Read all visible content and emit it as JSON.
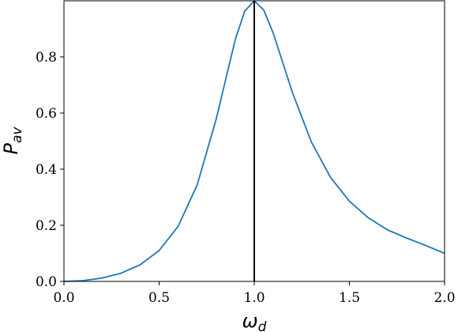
{
  "chart_data": {
    "type": "line",
    "xlabel": {
      "main": "ω",
      "sub": "d"
    },
    "ylabel": {
      "main": "P",
      "sub": "av"
    },
    "series": [
      {
        "color": "#1f77b4",
        "x": [
          0,
          0.1,
          0.2,
          0.3,
          0.4,
          0.5,
          0.6,
          0.7,
          0.8,
          0.9,
          0.95,
          1.0,
          1.05,
          1.1,
          1.2,
          1.3,
          1.4,
          1.5,
          1.6,
          1.7,
          1.8,
          1.9,
          2.0
        ],
        "values": [
          0,
          0.0028,
          0.0119,
          0.0293,
          0.0593,
          0.1098,
          0.1964,
          0.3437,
          0.5786,
          0.8618,
          0.9635,
          1.0,
          0.9669,
          0.8841,
          0.674,
          0.4967,
          0.3716,
          0.2857,
          0.2263,
          0.1836,
          0.1545,
          0.1284,
          0.1
        ]
      }
    ],
    "vline": {
      "x": 1.0,
      "color": "#000000"
    },
    "xlim": [
      0,
      2
    ],
    "ylim": [
      0,
      1
    ],
    "xticks": [
      {
        "value": 0,
        "label": "0.0"
      },
      0.5,
      {
        "value": 1,
        "label": "1.0"
      },
      1.5,
      {
        "value": 2,
        "label": "2.0"
      }
    ],
    "yticks": [
      {
        "value": 0,
        "label": "0.0"
      },
      0.2,
      0.4,
      0.6,
      0.8
    ],
    "grid": false
  }
}
